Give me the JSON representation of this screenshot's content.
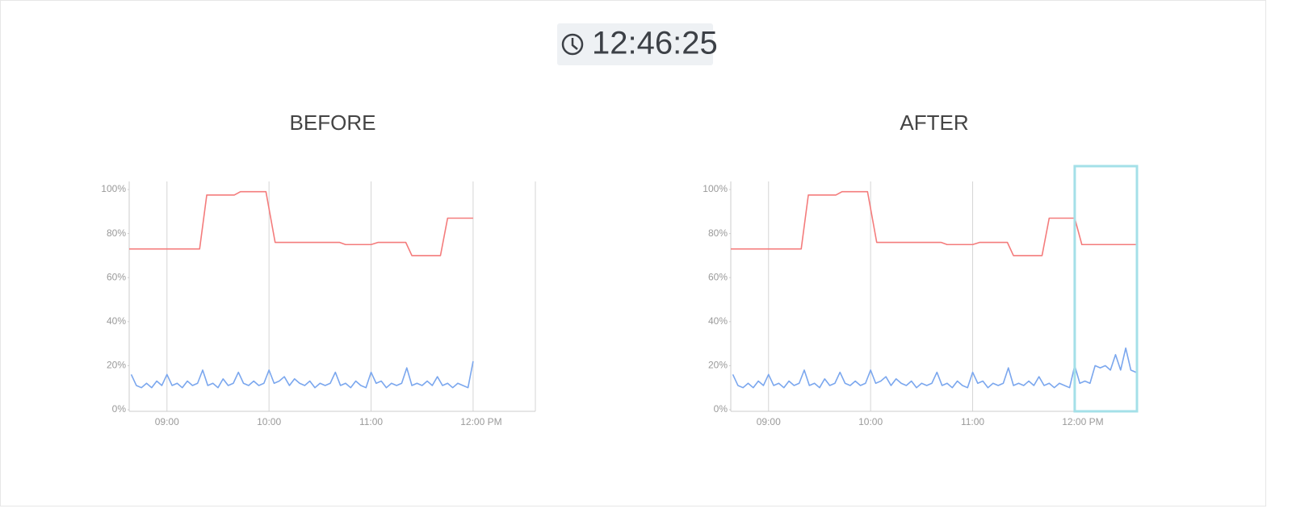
{
  "header": {
    "time": "12:46:25"
  },
  "chart_data": [
    {
      "type": "line",
      "title": "BEFORE",
      "xlim": [
        8.63,
        12.61
      ],
      "xticks": [
        {
          "value": 9,
          "label": "09:00"
        },
        {
          "value": 10,
          "label": "10:00"
        },
        {
          "value": 11,
          "label": "11:00"
        },
        {
          "value": 12,
          "label": "12:00 PM"
        }
      ],
      "ylim": [
        0,
        100
      ],
      "yticks": [
        {
          "value": 0,
          "label": "0%"
        },
        {
          "value": 20,
          "label": "20%"
        },
        {
          "value": 40,
          "label": "40%"
        },
        {
          "value": 60,
          "label": "60%"
        },
        {
          "value": 80,
          "label": "80%"
        },
        {
          "value": 100,
          "label": "100%"
        }
      ],
      "grid": true,
      "series": [
        {
          "color": "#f47c7c",
          "x": [
            8.63,
            9.32,
            9.39,
            9.66,
            9.72,
            9.97,
            10.06,
            10.69,
            10.75,
            11.0,
            11.07,
            11.34,
            11.4,
            11.68,
            11.75,
            12.0
          ],
          "values": [
            73,
            73,
            97.5,
            97.5,
            99,
            99,
            76,
            76,
            75,
            75,
            76,
            76,
            70,
            70,
            87,
            87
          ]
        },
        {
          "color": "#7ba7ee",
          "x": [
            8.65,
            8.7,
            8.75,
            8.8,
            8.85,
            8.9,
            8.95,
            9.0,
            9.05,
            9.1,
            9.15,
            9.2,
            9.25,
            9.3,
            9.35,
            9.4,
            9.45,
            9.5,
            9.55,
            9.6,
            9.65,
            9.7,
            9.75,
            9.8,
            9.85,
            9.9,
            9.95,
            10.0,
            10.05,
            10.1,
            10.15,
            10.2,
            10.25,
            10.3,
            10.35,
            10.4,
            10.45,
            10.5,
            10.55,
            10.6,
            10.65,
            10.7,
            10.75,
            10.8,
            10.85,
            10.9,
            10.95,
            11.0,
            11.05,
            11.1,
            11.15,
            11.2,
            11.25,
            11.3,
            11.35,
            11.4,
            11.45,
            11.5,
            11.55,
            11.6,
            11.65,
            11.7,
            11.75,
            11.8,
            11.85,
            11.9,
            11.95,
            12.0
          ],
          "values": [
            16,
            11,
            10,
            12,
            10,
            13,
            11,
            16,
            11,
            12,
            10,
            13,
            11,
            12,
            18,
            11,
            12,
            10,
            14,
            11,
            12,
            17,
            12,
            11,
            13,
            11,
            12,
            18,
            12,
            13,
            15,
            11,
            14,
            12,
            11,
            13,
            10,
            12,
            11,
            12,
            17,
            11,
            12,
            10,
            13,
            11,
            10,
            17,
            12,
            13,
            10,
            12,
            11,
            12,
            19,
            11,
            12,
            11,
            13,
            11,
            15,
            11,
            12,
            10,
            12,
            11,
            10,
            22
          ]
        }
      ]
    },
    {
      "type": "line",
      "title": "AFTER",
      "xlim": [
        8.63,
        12.61
      ],
      "xticks": [
        {
          "value": 9,
          "label": "09:00"
        },
        {
          "value": 10,
          "label": "10:00"
        },
        {
          "value": 11,
          "label": "11:00"
        },
        {
          "value": 12,
          "label": "12:00 PM"
        }
      ],
      "ylim": [
        0,
        100
      ],
      "yticks": [
        {
          "value": 0,
          "label": "0%"
        },
        {
          "value": 20,
          "label": "20%"
        },
        {
          "value": 40,
          "label": "40%"
        },
        {
          "value": 60,
          "label": "60%"
        },
        {
          "value": 80,
          "label": "80%"
        },
        {
          "value": 100,
          "label": "100%"
        }
      ],
      "grid": true,
      "series": [
        {
          "color": "#f47c7c",
          "x": [
            8.63,
            9.32,
            9.39,
            9.66,
            9.72,
            9.97,
            10.06,
            10.69,
            10.75,
            11.0,
            11.07,
            11.34,
            11.4,
            11.68,
            11.75,
            12.0,
            12.07,
            12.6
          ],
          "values": [
            73,
            73,
            97.5,
            97.5,
            99,
            99,
            76,
            76,
            75,
            75,
            76,
            76,
            70,
            70,
            87,
            87,
            75,
            75
          ]
        },
        {
          "color": "#7ba7ee",
          "x": [
            8.65,
            8.7,
            8.75,
            8.8,
            8.85,
            8.9,
            8.95,
            9.0,
            9.05,
            9.1,
            9.15,
            9.2,
            9.25,
            9.3,
            9.35,
            9.4,
            9.45,
            9.5,
            9.55,
            9.6,
            9.65,
            9.7,
            9.75,
            9.8,
            9.85,
            9.9,
            9.95,
            10.0,
            10.05,
            10.1,
            10.15,
            10.2,
            10.25,
            10.3,
            10.35,
            10.4,
            10.45,
            10.5,
            10.55,
            10.6,
            10.65,
            10.7,
            10.75,
            10.8,
            10.85,
            10.9,
            10.95,
            11.0,
            11.05,
            11.1,
            11.15,
            11.2,
            11.25,
            11.3,
            11.35,
            11.4,
            11.45,
            11.5,
            11.55,
            11.6,
            11.65,
            11.7,
            11.75,
            11.8,
            11.85,
            11.9,
            11.95,
            12.0,
            12.05,
            12.1,
            12.15,
            12.2,
            12.25,
            12.3,
            12.35,
            12.4,
            12.45,
            12.5,
            12.55,
            12.6
          ],
          "values": [
            16,
            11,
            10,
            12,
            10,
            13,
            11,
            16,
            11,
            12,
            10,
            13,
            11,
            12,
            18,
            11,
            12,
            10,
            14,
            11,
            12,
            17,
            12,
            11,
            13,
            11,
            12,
            18,
            12,
            13,
            15,
            11,
            14,
            12,
            11,
            13,
            10,
            12,
            11,
            12,
            17,
            11,
            12,
            10,
            13,
            11,
            10,
            17,
            12,
            13,
            10,
            12,
            11,
            12,
            19,
            11,
            12,
            11,
            13,
            11,
            15,
            11,
            12,
            10,
            12,
            11,
            10,
            20,
            12,
            13,
            12,
            20,
            19,
            20,
            18,
            25,
            18,
            28,
            18,
            17
          ]
        }
      ]
    }
  ]
}
